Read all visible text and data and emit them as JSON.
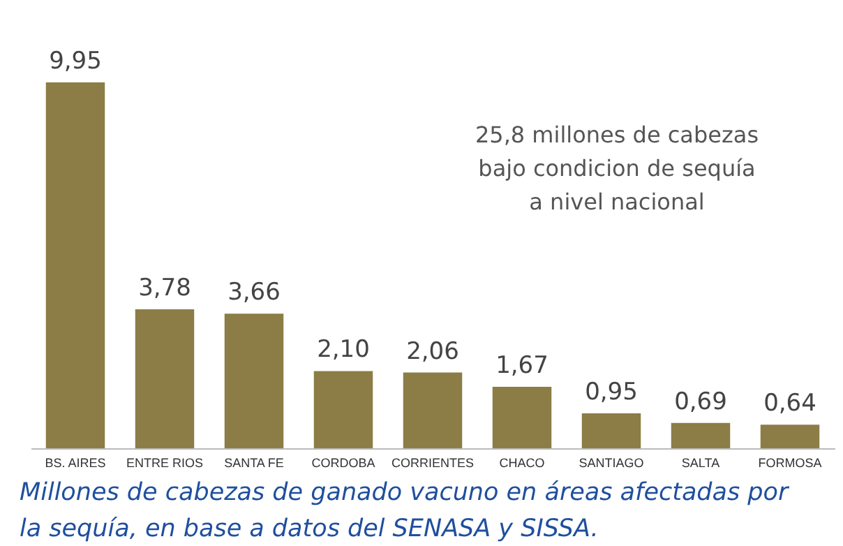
{
  "chart_data": {
    "type": "bar",
    "categories": [
      "BS. AIRES",
      "ENTRE RIOS",
      "SANTA FE",
      "CORDOBA",
      "CORRIENTES",
      "CHACO",
      "SANTIAGO",
      "SALTA",
      "FORMOSA"
    ],
    "values": [
      9.95,
      3.78,
      3.66,
      2.1,
      2.06,
      1.67,
      0.95,
      0.69,
      0.64
    ],
    "value_labels": [
      "9,95",
      "3,78",
      "3,66",
      "2,10",
      "2,06",
      "1,67",
      "0,95",
      "0,69",
      "0,64"
    ],
    "color": "#8c7d46",
    "annotations": [
      "25,8 millones de cabezas\nbajo condicion de sequía\na nivel nacional",
      "Millones de cabezas de ganado vacuno en áreas afectadas por\nla sequía, en base a datos del SENASA y SISSA."
    ]
  }
}
